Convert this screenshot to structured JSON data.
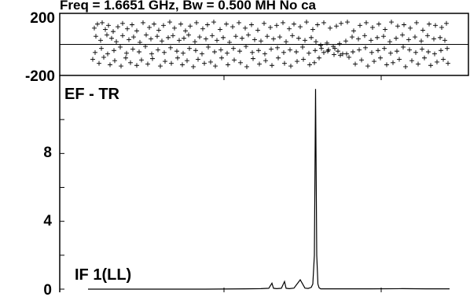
{
  "chart_data": [
    {
      "type": "scatter",
      "title": "Freq = 1.6651 GHz, Bw = 0.500 MH   No ca",
      "y_ticks": [
        "200",
        "-200"
      ],
      "ylim": [
        -200,
        200
      ],
      "xlim": [
        0,
        460
      ],
      "marker": "+",
      "zero_line": true,
      "series": [
        {
          "x": [
            8,
            12,
            18,
            22,
            26,
            32,
            38,
            44,
            50,
            56,
            62,
            70,
            78,
            84,
            90,
            96,
            104,
            110,
            118,
            124,
            130,
            138,
            146,
            152,
            160,
            168,
            176,
            184,
            192,
            200,
            208,
            216,
            224,
            232,
            240,
            248,
            256,
            262,
            270,
            278,
            286,
            292,
            300,
            308,
            316,
            322,
            330,
            338,
            346,
            354,
            362,
            370,
            378,
            386,
            394,
            402,
            410,
            418,
            426,
            434,
            442,
            450,
            456,
            10,
            16,
            24,
            30,
            36,
            44,
            52,
            58,
            66,
            74,
            80,
            88,
            94,
            102,
            108,
            116,
            122,
            128,
            136,
            142,
            150,
            158,
            164,
            172,
            180,
            188,
            196,
            204,
            212,
            220,
            228,
            236,
            244,
            252,
            260,
            268,
            276,
            284,
            290,
            296,
            304,
            312,
            320,
            328,
            336,
            344,
            352,
            360,
            368,
            376,
            384,
            392,
            400,
            408,
            416,
            424,
            432,
            440,
            448,
            454,
            6,
            14,
            20,
            28,
            34,
            42,
            48,
            54,
            62,
            68,
            76,
            82,
            92,
            98,
            106,
            114,
            120,
            126,
            134,
            140,
            148,
            156,
            162,
            170,
            178,
            186,
            194,
            202,
            210,
            218,
            226,
            234,
            242,
            250,
            258,
            266,
            274,
            282,
            288,
            294,
            300,
            306,
            314,
            318,
            324,
            332,
            340,
            348,
            356,
            364,
            372,
            380,
            388,
            396,
            404,
            412,
            420,
            428,
            436,
            444,
            452,
            458,
            9,
            17,
            25,
            33,
            41,
            49,
            57,
            65,
            73,
            81,
            89,
            97,
            105,
            113,
            121,
            129,
            137,
            145,
            153,
            161,
            169,
            177,
            185,
            193,
            201,
            209,
            217,
            225,
            233,
            241,
            249,
            257,
            265,
            273,
            281,
            289,
            297,
            305,
            313,
            321,
            329,
            337,
            345,
            353,
            361,
            369,
            377,
            385,
            393,
            401,
            409,
            417,
            425,
            433,
            441,
            449,
            457
          ],
          "y": [
            120,
            150,
            160,
            110,
            140,
            95,
            130,
            155,
            115,
            145,
            100,
            160,
            125,
            150,
            105,
            140,
            165,
            120,
            150,
            100,
            135,
            160,
            115,
            145,
            165,
            110,
            150,
            130,
            160,
            120,
            145,
            105,
            155,
            125,
            140,
            160,
            115,
            150,
            130,
            165,
            110,
            145,
            160,
            120,
            135,
            155,
            165,
            100,
            140,
            160,
            125,
            150,
            110,
            165,
            135,
            145,
            120,
            160,
            105,
            150,
            140,
            125,
            155,
            60,
            30,
            70,
            45,
            20,
            65,
            35,
            55,
            15,
            70,
            40,
            60,
            25,
            50,
            65,
            30,
            45,
            70,
            20,
            55,
            40,
            65,
            30,
            50,
            15,
            60,
            45,
            70,
            35,
            25,
            60,
            40,
            55,
            20,
            65,
            45,
            30,
            50,
            20,
            -5,
            10,
            -15,
            5,
            25,
            55,
            40,
            65,
            30,
            50,
            60,
            20,
            45,
            70,
            35,
            55,
            25,
            65,
            40,
            50,
            30,
            -110,
            -140,
            -95,
            -150,
            -120,
            -160,
            -100,
            -135,
            -155,
            -115,
            -145,
            -105,
            -160,
            -125,
            -140,
            -100,
            -150,
            -120,
            -165,
            -110,
            -140,
            -130,
            -160,
            -100,
            -150,
            -115,
            -135,
            -165,
            -105,
            -145,
            -120,
            -155,
            -100,
            -140,
            -160,
            -125,
            -110,
            -150,
            -135,
            -100,
            -60,
            -40,
            -30,
            -50,
            -70,
            -95,
            -145,
            -115,
            -160,
            -125,
            -100,
            -150,
            -135,
            -110,
            -165,
            -120,
            -145,
            -100,
            -155,
            -130,
            -110,
            -140,
            -60,
            -30,
            -70,
            -45,
            -20,
            -65,
            -35,
            -55,
            -15,
            -70,
            -40,
            -60,
            -25,
            -50,
            -65,
            -30,
            -45,
            -70,
            -20,
            -55,
            -40,
            -65,
            -30,
            -50,
            -15,
            -60,
            -45,
            -70,
            -35,
            -25,
            -60,
            -40,
            -55,
            -20,
            -65,
            -45,
            -30,
            -50,
            -75,
            -80,
            -70,
            -55,
            -40,
            -25,
            -60,
            -45,
            -30,
            -65,
            -50,
            -20,
            -40,
            -60,
            -35,
            -55,
            -70,
            -45,
            -30
          ]
        }
      ]
    },
    {
      "type": "line",
      "annotations": [
        "EF - TR",
        "IF 1(LL)"
      ],
      "y_ticks": [
        "8",
        "4",
        "0"
      ],
      "ylim": [
        0,
        12
      ],
      "xlim": [
        0,
        460
      ],
      "series": [
        {
          "x": [
            0,
            50,
            100,
            150,
            200,
            220,
            230,
            234,
            236,
            240,
            246,
            250,
            252,
            256,
            262,
            270,
            276,
            280,
            284,
            286,
            288,
            289.5,
            291,
            292.5,
            294,
            296,
            300,
            320,
            360,
            400,
            430,
            460
          ],
          "y": [
            0,
            0,
            0,
            0,
            0.02,
            0.03,
            0.05,
            0.35,
            0.05,
            0.03,
            0.05,
            0.45,
            0.05,
            0.03,
            0.06,
            0.55,
            0.06,
            0.04,
            0.1,
            0.3,
            2,
            11.8,
            2,
            0.3,
            0.08,
            0.02,
            0.02,
            0.02,
            0.02,
            0.03,
            0.02,
            0.02
          ]
        }
      ]
    }
  ]
}
